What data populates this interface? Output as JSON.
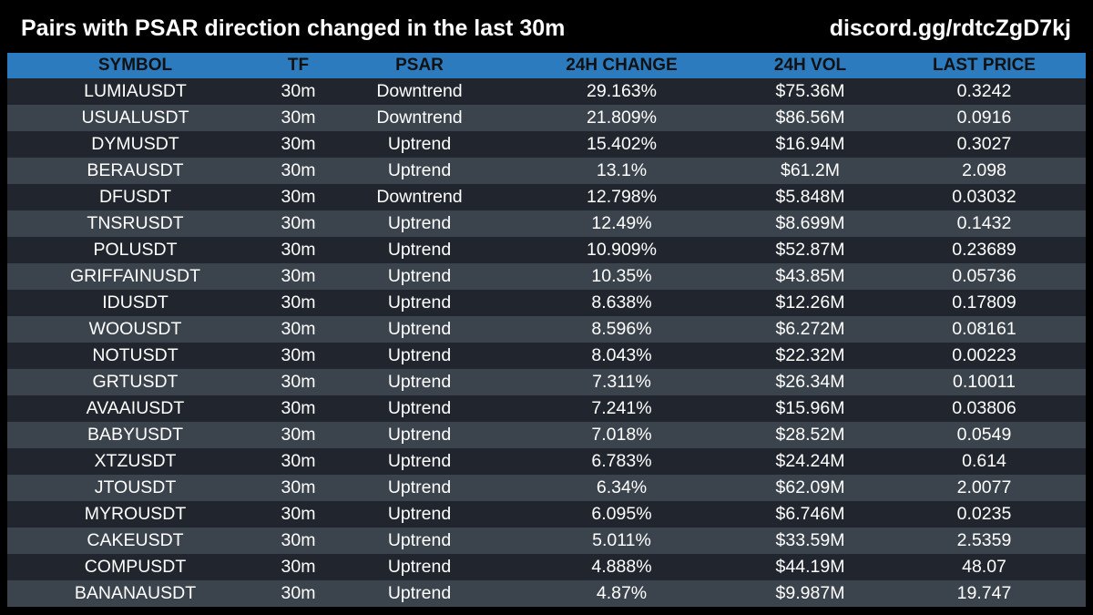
{
  "header": {
    "title": "Pairs with PSAR direction changed in the last 30m",
    "discord": "discord.gg/rdtcZgD7kj"
  },
  "table": {
    "columns": [
      "SYMBOL",
      "TF",
      "PSAR",
      "24H CHANGE",
      "24H VOL",
      "LAST PRICE"
    ],
    "rows": [
      [
        "LUMIAUSDT",
        "30m",
        "Downtrend",
        "29.163%",
        "$75.36M",
        "0.3242"
      ],
      [
        "USUALUSDT",
        "30m",
        "Downtrend",
        "21.809%",
        "$86.56M",
        "0.0916"
      ],
      [
        "DYMUSDT",
        "30m",
        "Uptrend",
        "15.402%",
        "$16.94M",
        "0.3027"
      ],
      [
        "BERAUSDT",
        "30m",
        "Uptrend",
        "13.1%",
        "$61.2M",
        "2.098"
      ],
      [
        "DFUSDT",
        "30m",
        "Downtrend",
        "12.798%",
        "$5.848M",
        "0.03032"
      ],
      [
        "TNSRUSDT",
        "30m",
        "Uptrend",
        "12.49%",
        "$8.699M",
        "0.1432"
      ],
      [
        "POLUSDT",
        "30m",
        "Uptrend",
        "10.909%",
        "$52.87M",
        "0.23689"
      ],
      [
        "GRIFFAINUSDT",
        "30m",
        "Uptrend",
        "10.35%",
        "$43.85M",
        "0.05736"
      ],
      [
        "IDUSDT",
        "30m",
        "Uptrend",
        "8.638%",
        "$12.26M",
        "0.17809"
      ],
      [
        "WOOUSDT",
        "30m",
        "Uptrend",
        "8.596%",
        "$6.272M",
        "0.08161"
      ],
      [
        "NOTUSDT",
        "30m",
        "Uptrend",
        "8.043%",
        "$22.32M",
        "0.00223"
      ],
      [
        "GRTUSDT",
        "30m",
        "Uptrend",
        "7.311%",
        "$26.34M",
        "0.10011"
      ],
      [
        "AVAAIUSDT",
        "30m",
        "Uptrend",
        "7.241%",
        "$15.96M",
        "0.03806"
      ],
      [
        "BABYUSDT",
        "30m",
        "Uptrend",
        "7.018%",
        "$28.52M",
        "0.0549"
      ],
      [
        "XTZUSDT",
        "30m",
        "Uptrend",
        "6.783%",
        "$24.24M",
        "0.614"
      ],
      [
        "JTOUSDT",
        "30m",
        "Uptrend",
        "6.34%",
        "$62.09M",
        "2.0077"
      ],
      [
        "MYROUSDT",
        "30m",
        "Uptrend",
        "6.095%",
        "$6.746M",
        "0.0235"
      ],
      [
        "CAKEUSDT",
        "30m",
        "Uptrend",
        "5.011%",
        "$33.59M",
        "2.5359"
      ],
      [
        "COMPUSDT",
        "30m",
        "Uptrend",
        "4.888%",
        "$44.19M",
        "48.07"
      ],
      [
        "BANANAUSDT",
        "30m",
        "Uptrend",
        "4.87%",
        "$9.987M",
        "19.747"
      ]
    ]
  },
  "colors": {
    "background": "#000000",
    "header_row": "#2c7bbf",
    "row_dark": "#21262e",
    "row_light": "#3b434c",
    "text": "#ffffff",
    "header_text": "#111111"
  }
}
